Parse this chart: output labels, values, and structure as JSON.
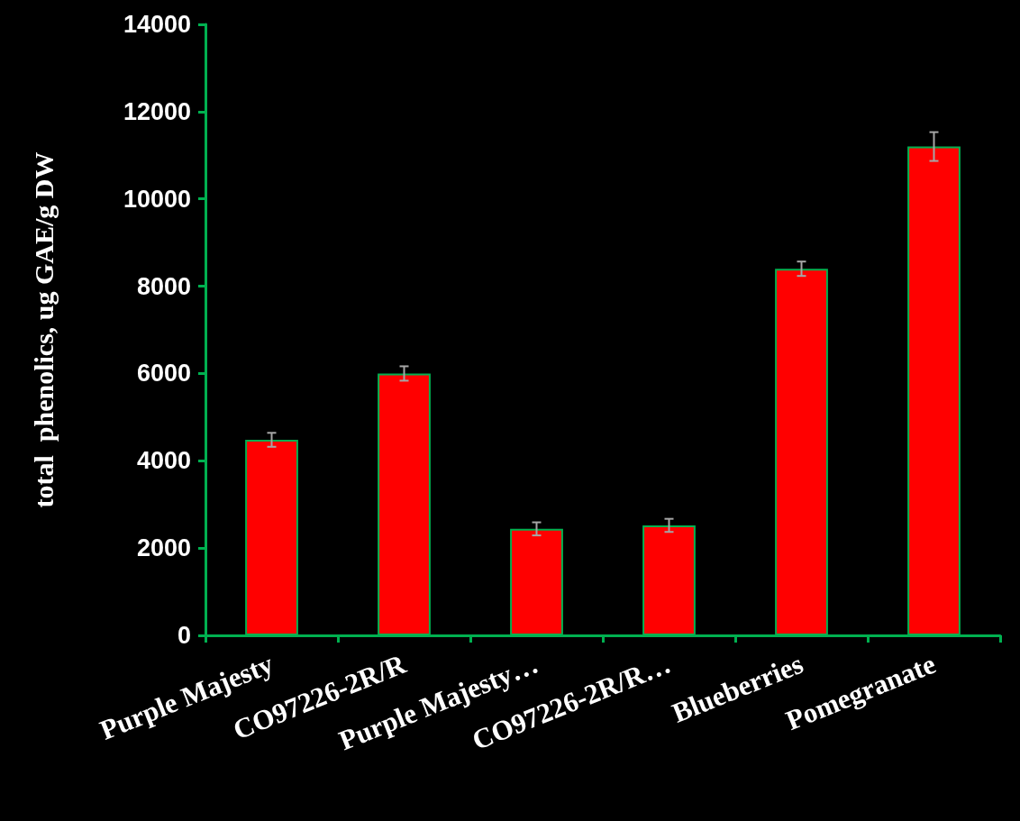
{
  "chart_data": {
    "type": "bar",
    "ylabel": "total  phenolics, ug GAE/g DW",
    "categories": [
      "Purple Majesty",
      "CO97226-2R/R",
      "Purple Majesty…",
      "CO97226-2R/R…",
      "Blueberries",
      "Pomegranate"
    ],
    "values": [
      4480,
      6000,
      2440,
      2520,
      8400,
      11200
    ],
    "errors": [
      160,
      165,
      150,
      150,
      165,
      330
    ],
    "color": "#ff0000",
    "ylim": [
      0,
      14000
    ],
    "yticks": [
      0,
      2000,
      4000,
      6000,
      8000,
      10000,
      12000,
      14000
    ],
    "grid": false
  }
}
